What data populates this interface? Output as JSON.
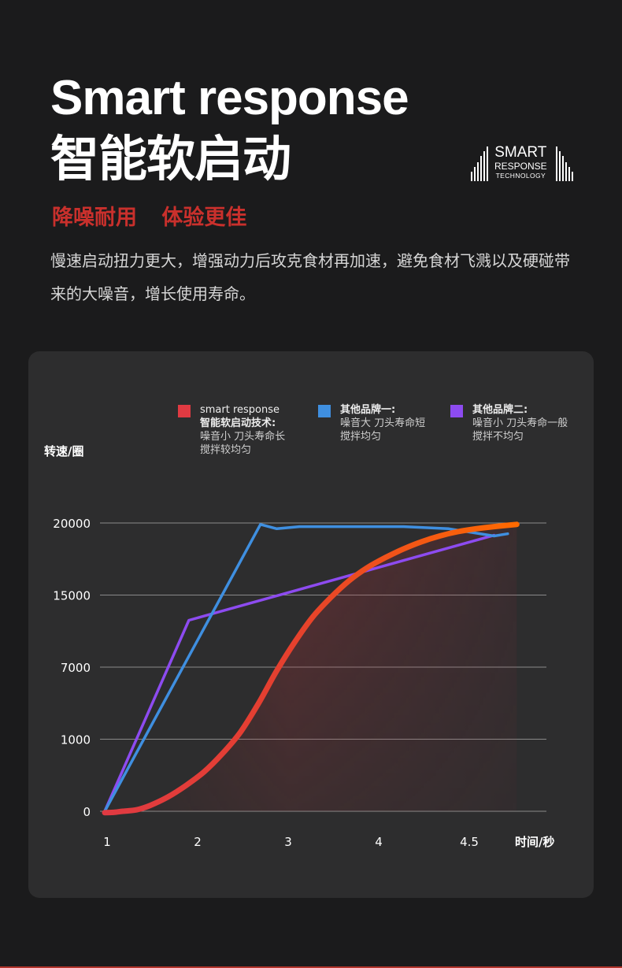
{
  "header": {
    "title_en": "Smart response",
    "title_cn": "智能软启动",
    "subtitle_parts": [
      "降噪耐用",
      "体验更佳"
    ],
    "description": "慢速启动扭力更大，增强动力后攻克食材再加速，避免食材飞溅以及硬碰带来的大噪音，增长使用寿命。",
    "accent_color": "#c9302c"
  },
  "logo": {
    "line1": "SMART",
    "line2": "RESPONSE",
    "line3": "TECHNOLOGY"
  },
  "legend": [
    {
      "title": "smart response",
      "bold_line": "智能软启动技术:",
      "desc1": "噪音小 刀头寿命长",
      "desc2": "搅拌较均匀",
      "color": "#e03a42"
    },
    {
      "title": "其他品牌一:",
      "desc1": "噪音大 刀头寿命短",
      "desc2": "搅拌均匀",
      "color": "#3f8fe0"
    },
    {
      "title": "其他品牌二:",
      "desc1": "噪音小 刀头寿命一般",
      "desc2": "搅拌不均匀",
      "color": "#8d4bf0"
    }
  ],
  "chart_data": {
    "type": "line",
    "ylabel": "转速/圈",
    "xlabel": "时间/秒",
    "x_tick_labels": [
      "1",
      "2",
      "3",
      "4",
      "4.5"
    ],
    "y_tick_labels": [
      "0",
      "1000",
      "7000",
      "15000",
      "20000"
    ],
    "grid": true,
    "legend_position": "top",
    "note": "Axes are categorical/uneven; series values expressed as x tick index (0-4) and y tick level (0-4).",
    "series": [
      {
        "name": "smart response",
        "color_start": "#e03a42",
        "color_end": "#ff6a00",
        "x": [
          0,
          0.1,
          0.2,
          0.35,
          0.5,
          0.7,
          0.9,
          1.1,
          1.3,
          1.5,
          1.7,
          1.9,
          2.1,
          2.3,
          2.5,
          2.7,
          2.9,
          3.1,
          3.3,
          3.5,
          3.7,
          3.9,
          4.1,
          4.3,
          4.55
        ],
        "y": [
          -0.02,
          -0.015,
          0,
          0.02,
          0.08,
          0.2,
          0.36,
          0.55,
          0.8,
          1.1,
          1.5,
          1.95,
          2.35,
          2.7,
          2.97,
          3.2,
          3.38,
          3.52,
          3.64,
          3.74,
          3.82,
          3.88,
          3.92,
          3.95,
          3.98
        ]
      },
      {
        "name": "其他品牌一",
        "color": "#3f8fe0",
        "x": [
          0,
          1.72,
          1.9,
          2.15,
          2.6,
          3.3,
          3.8,
          4.3,
          4.45
        ],
        "y": [
          0,
          3.98,
          3.92,
          3.95,
          3.95,
          3.95,
          3.92,
          3.82,
          3.85
        ]
      },
      {
        "name": "其他品牌二",
        "color": "#8d4bf0",
        "x": [
          0,
          0.93,
          4.3
        ],
        "y": [
          0,
          2.65,
          3.83
        ]
      }
    ]
  }
}
